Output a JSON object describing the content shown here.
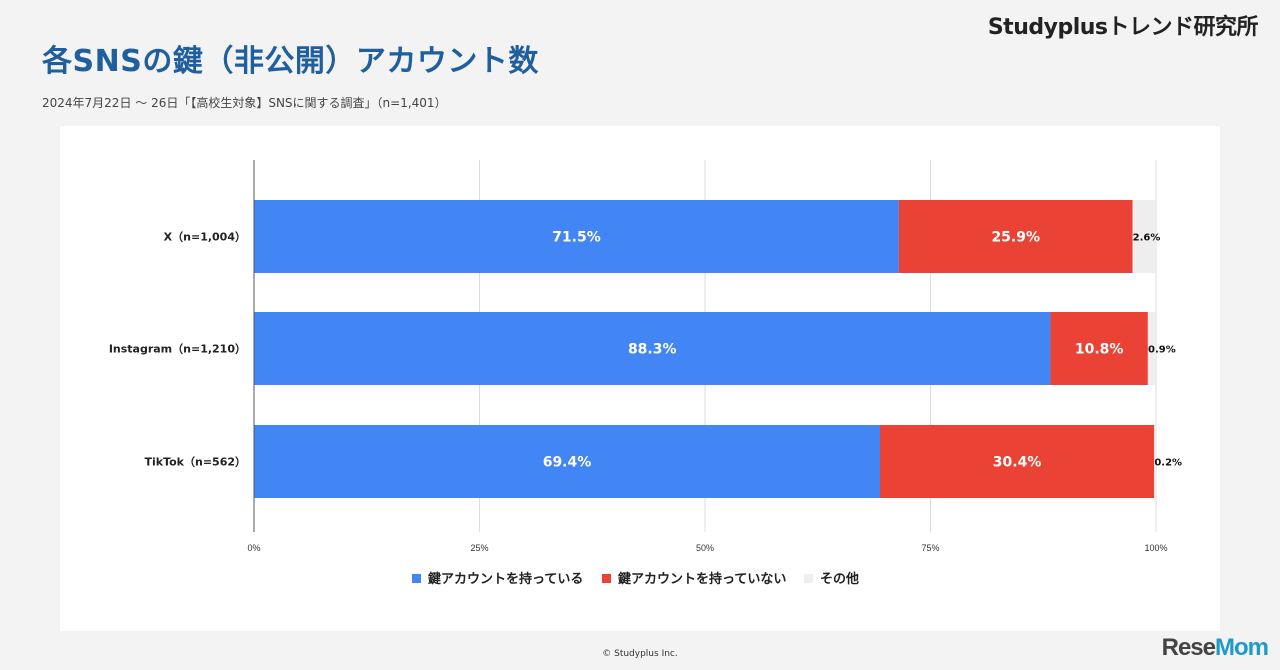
{
  "brand": "Studyplusトレンド研究所",
  "title": "各SNSの鍵（非公開）アカウント数",
  "subtitle": "2024年7月22日 〜 26日「【高校生対象】SNSに関する調査」（n=1,401）",
  "footer": "© Studyplus Inc.",
  "watermark": {
    "part1": "Rese",
    "part2": "Mom"
  },
  "colors": {
    "locked": "#4285f4",
    "unlocked": "#ea4335",
    "other": "#eeeeee",
    "title": "#1f5f9e"
  },
  "chart_data": {
    "type": "bar",
    "orientation": "horizontal",
    "stacked": true,
    "categories": [
      "X（n=1,004）",
      "Instagram（n=1,210）",
      "TikTok（n=562）"
    ],
    "series": [
      {
        "name": "鍵アカウントを持っている",
        "values": [
          71.5,
          88.3,
          69.4
        ],
        "labels": [
          "71.5%",
          "88.3%",
          "69.4%"
        ],
        "color": "#4285f4",
        "label_color": "#ffffff"
      },
      {
        "name": "鍵アカウントを持っていない",
        "values": [
          25.9,
          10.8,
          30.4
        ],
        "labels": [
          "25.9%",
          "10.8%",
          "30.4%"
        ],
        "color": "#ea4335",
        "label_color": "#ffffff"
      },
      {
        "name": "その他",
        "values": [
          2.6,
          0.9,
          0.2
        ],
        "labels": [
          "2.6%",
          "0.9%",
          "0.2%"
        ],
        "color": "#eeeeee",
        "label_color": "#111111"
      }
    ],
    "xlim": [
      0,
      100
    ],
    "xticks": [
      0,
      25,
      50,
      75,
      100
    ],
    "xtick_labels": [
      "0%",
      "25%",
      "50%",
      "75%",
      "100%"
    ],
    "grid": true,
    "legend_position": "bottom"
  }
}
